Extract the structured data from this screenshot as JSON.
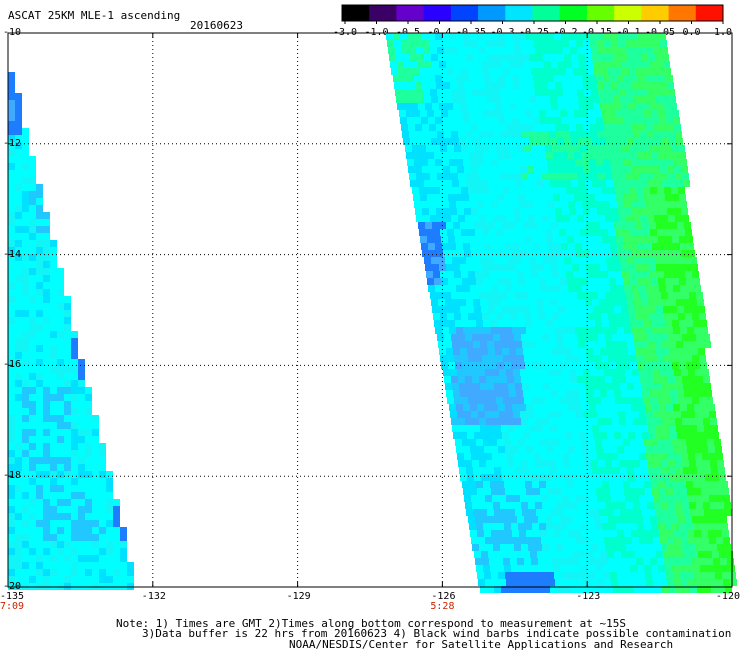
{
  "header": {
    "title": "ASCAT 25KM MLE-1 ascending",
    "date": "20160623"
  },
  "colorbar": {
    "labels": [
      "-3.0",
      "-1.0",
      "-0.5",
      "-0.4",
      "-0.35",
      "-0.3",
      "-0.25",
      "-0.2",
      "-0.15",
      "-0.1",
      "-0.05",
      "0.0",
      "1.0"
    ],
    "colors": [
      "#000000",
      "#3a0066",
      "#6600cc",
      "#2a00ff",
      "#0044ff",
      "#0099ff",
      "#00e5ff",
      "#00ff99",
      "#00ff22",
      "#66ff00",
      "#ccff00",
      "#ffcc00",
      "#ff7700",
      "#ff1100"
    ]
  },
  "map": {
    "lon_range": [
      -135,
      -120
    ],
    "lat_range": [
      -20,
      -10
    ],
    "lon_ticks": [
      "-135",
      "-132",
      "-129",
      "-126",
      "-123",
      "-120"
    ],
    "lat_ticks": [
      "-10",
      "-12",
      "-14",
      "-16",
      "-18",
      "-20"
    ],
    "pass_times": [
      {
        "lon": -135,
        "label": "7:09"
      },
      {
        "lon": -126,
        "label": "5:28"
      }
    ],
    "swath_colors": {
      "cyan": "#00ffff",
      "cyan_light": "#11f5f7",
      "cyan_blue": "#00e0ff",
      "sky": "#20c8ff",
      "light_blue": "#3faaff",
      "blue": "#1e7cff",
      "teal": "#00ffcc",
      "aqua_green": "#1eff9e",
      "green_light": "#33ff66",
      "green": "#22ff22",
      "yellow": "#ffdd00",
      "orange": "#ff9900"
    }
  },
  "footer": {
    "note_line1": "Note: 1) Times are GMT 2)Times along bottom correspond to measurement at ~15S",
    "note_line2": "3)Data buffer is 22 hrs from 20160623 4) Black wind barbs indicate possible contamination",
    "credit": "NOAA/NESDIS/Center for Satellite Applications and Research"
  }
}
